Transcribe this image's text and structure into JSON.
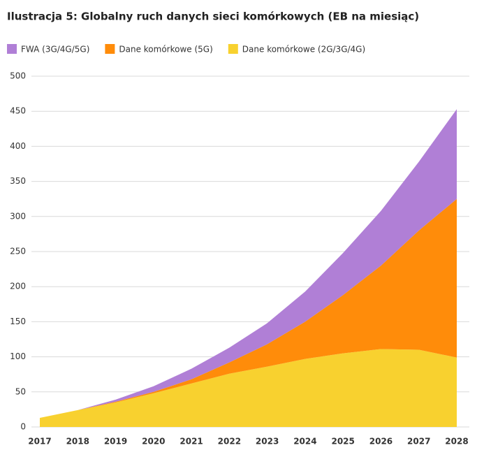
{
  "chart_data": {
    "type": "stacked_area",
    "title": "Ilustracja 5: Globalny ruch danych sieci komórkowych (EB na miesiąc)",
    "categories": [
      "2017",
      "2018",
      "2019",
      "2020",
      "2021",
      "2022",
      "2023",
      "2024",
      "2025",
      "2026",
      "2027",
      "2028"
    ],
    "series": [
      {
        "name": "Dane komórkowe (2G/3G/4G)",
        "color": "#f8d12f",
        "values": [
          13,
          24,
          35,
          48,
          62,
          76,
          86,
          97,
          105,
          111,
          110,
          99
        ]
      },
      {
        "name": "Dane komórkowe (5G)",
        "color": "#ff8c0a",
        "values": [
          0,
          0,
          1,
          2,
          6,
          16,
          32,
          53,
          83,
          119,
          170,
          226
        ]
      },
      {
        "name": "FWA (3G/4G/5G)",
        "color": "#b07fd6",
        "values": [
          0,
          0,
          3,
          8,
          15,
          21,
          30,
          43,
          60,
          78,
          98,
          128
        ]
      }
    ],
    "legend_order": [
      2,
      1,
      0
    ],
    "ylim": [
      0,
      500
    ],
    "yticks": [
      0,
      50,
      100,
      150,
      200,
      250,
      300,
      350,
      400,
      450,
      500
    ],
    "grid": true
  }
}
